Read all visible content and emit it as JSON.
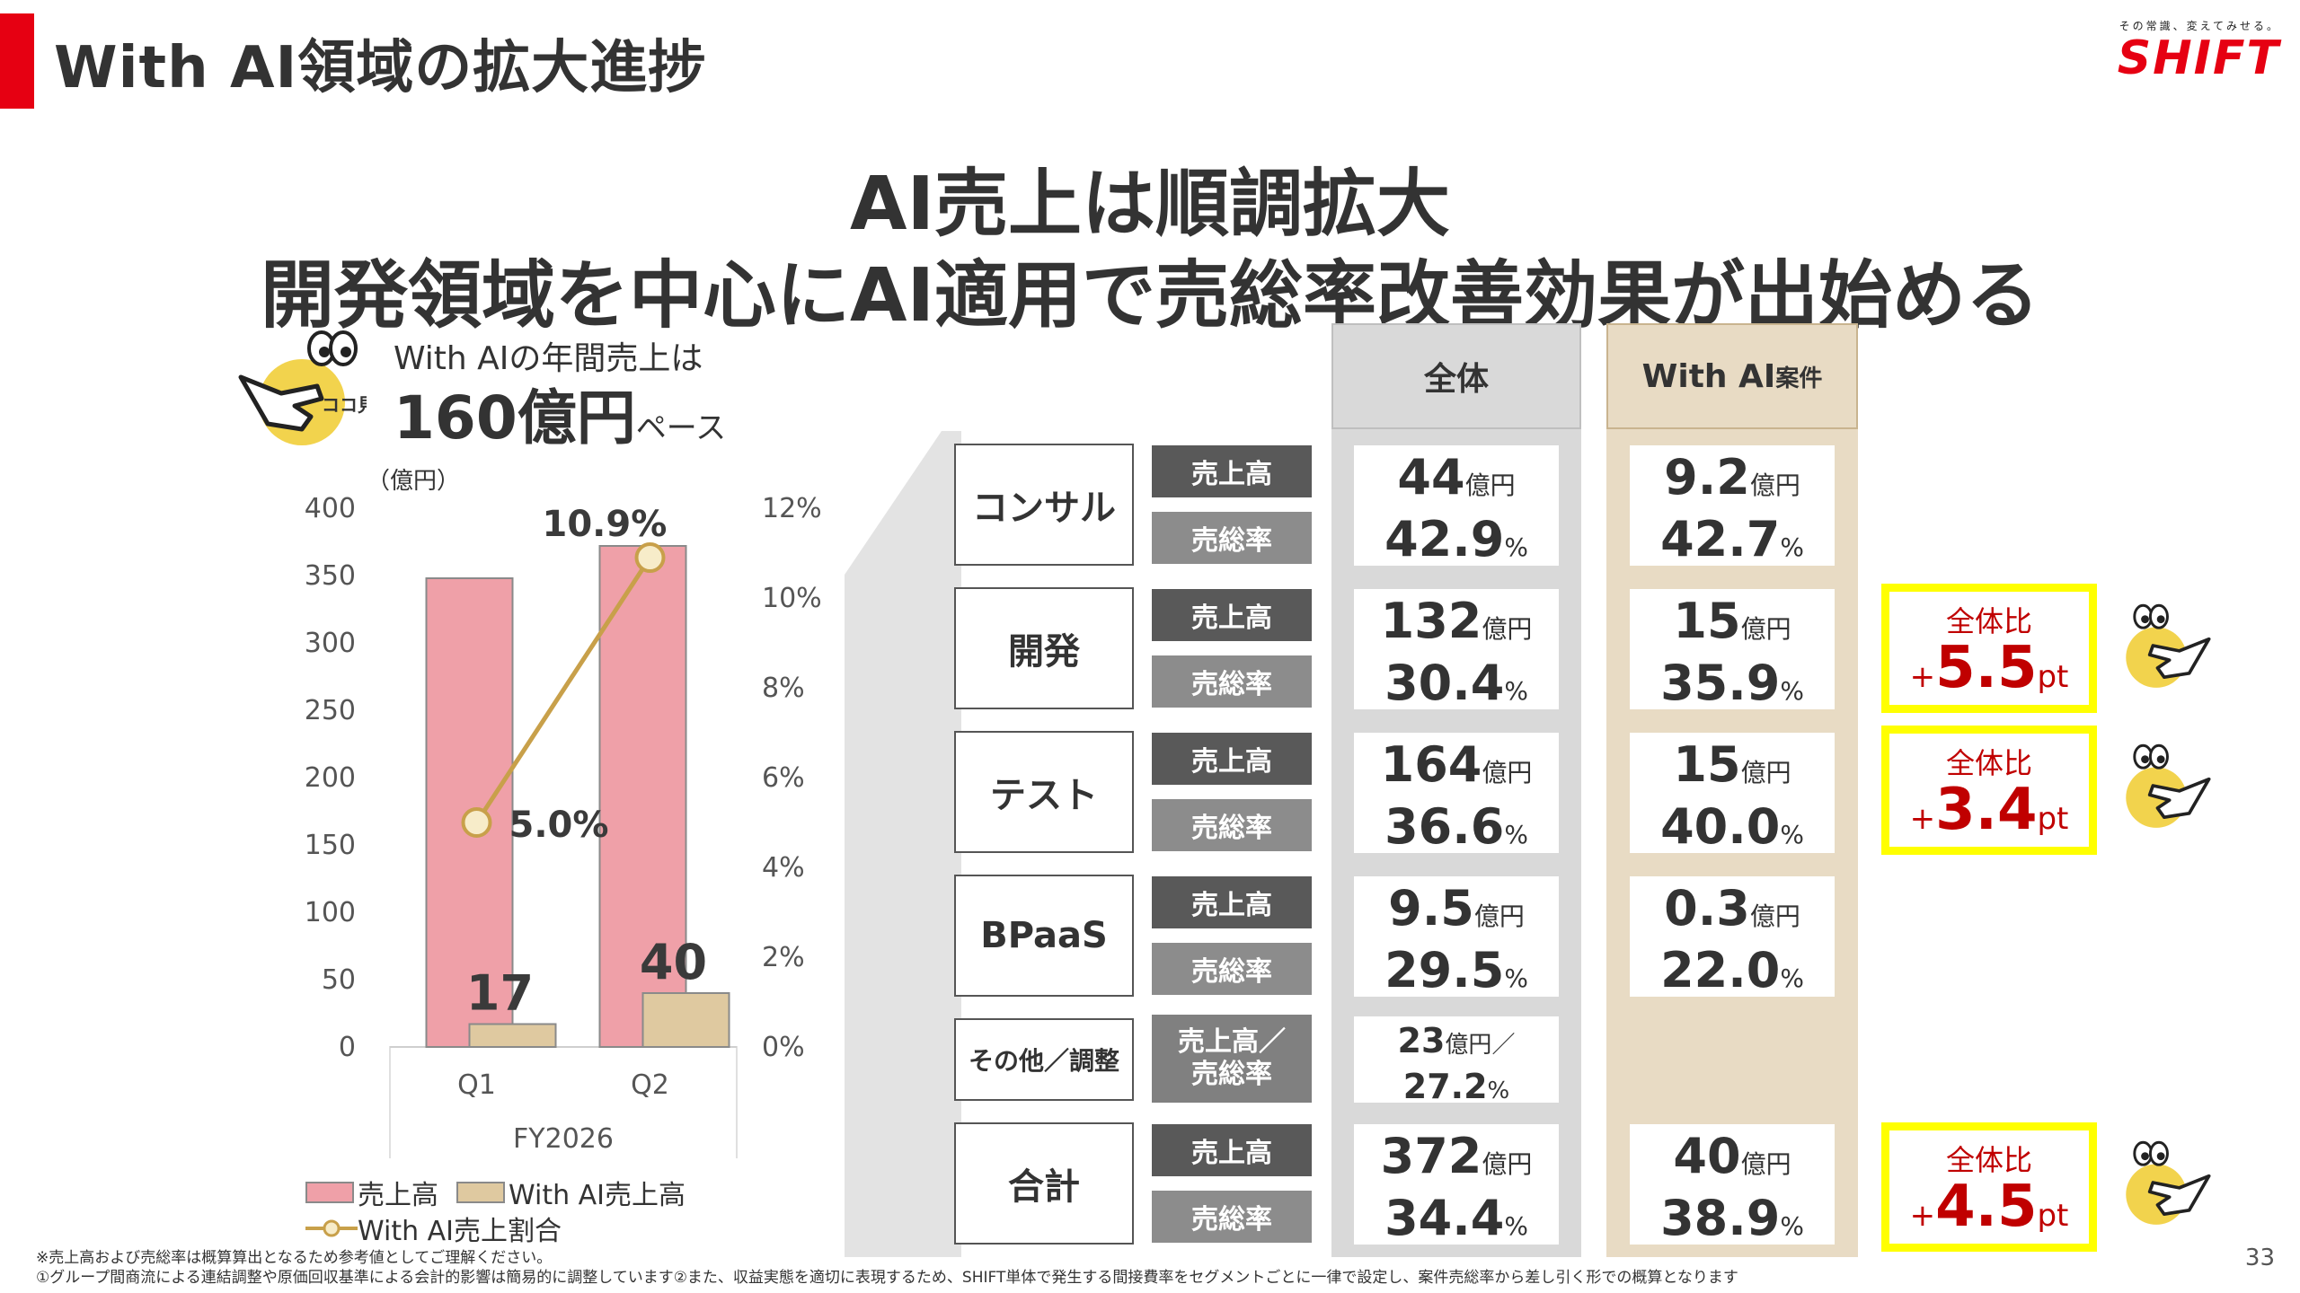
{
  "header": {
    "title": "With AI領域の拡大進捗",
    "brand_tagline": "その常識、変えてみせる。",
    "brand_logo": "SHIFT"
  },
  "headline": {
    "line1": "AI売上は順調拡大",
    "line2": "開発領域を中心にAI適用で売総率改善効果が出始める"
  },
  "callout": {
    "text1": "With AIの年間売上は",
    "value": "160億円",
    "unit": "ペース",
    "mascot_label": "ココ見て"
  },
  "chart_data": {
    "type": "bar",
    "unit_label": "（億円）",
    "categories": [
      "Q1",
      "Q2"
    ],
    "group_label": "FY2026",
    "series": [
      {
        "name": "売上高",
        "values": [
          348,
          372
        ],
        "color": "#efa0a8",
        "labels": [
          "",
          ""
        ]
      },
      {
        "name": "With AI売上高",
        "values": [
          17,
          40
        ],
        "color": "#dfc9a0",
        "labels": [
          "17",
          "40"
        ]
      }
    ],
    "line_series": {
      "name": "With AI売上割合",
      "values": [
        5.0,
        10.9
      ],
      "labels": [
        "5.0%",
        "10.9%"
      ],
      "color": "#c8a04a",
      "axis": "right"
    },
    "y_left": {
      "min": 0,
      "max": 400,
      "ticks": [
        "0",
        "50",
        "100",
        "150",
        "200",
        "250",
        "300",
        "350",
        "400"
      ]
    },
    "y_right": {
      "min": 0,
      "max": 12,
      "ticks": [
        "0%",
        "2%",
        "4%",
        "6%",
        "8%",
        "10%",
        "12%"
      ]
    }
  },
  "table": {
    "col_all": "全体",
    "col_ai": "With AI",
    "col_ai_suffix": "案件",
    "label_sales": "売上高",
    "label_margin": "売総率",
    "label_both_line1": "売上高／",
    "label_both_line2": "売総率",
    "unit_oku": "億円",
    "unit_pct": "%",
    "rows": [
      {
        "segment": "コンサル",
        "all_sales": "44",
        "all_margin": "42.9",
        "ai_sales": "9.2",
        "ai_margin": "42.7"
      },
      {
        "segment": "開発",
        "all_sales": "132",
        "all_margin": "30.4",
        "ai_sales": "15",
        "ai_margin": "35.9",
        "diff": "5.5"
      },
      {
        "segment": "テスト",
        "all_sales": "164",
        "all_margin": "36.6",
        "ai_sales": "15",
        "ai_margin": "40.0",
        "diff": "3.4"
      },
      {
        "segment": "BPaaS",
        "all_sales": "9.5",
        "all_margin": "29.5",
        "ai_sales": "0.3",
        "ai_margin": "22.0"
      },
      {
        "segment": "その他／調整",
        "all_sales": "23",
        "all_margin": "27.2"
      },
      {
        "segment": "合計",
        "all_sales": "372",
        "all_margin": "34.4",
        "ai_sales": "40",
        "ai_margin": "38.9",
        "diff": "4.5"
      }
    ],
    "diff_label": "全体比",
    "diff_prefix": "+",
    "diff_unit": "pt"
  },
  "footnotes": {
    "line1": "※売上高および売総率は概算算出となるため参考値としてご理解ください。",
    "line2": "①グループ間商流による連結調整や原価回収基準による会計的影響は簡易的に調整しています②また、収益実態を適切に表現するため、SHIFT単体で発生する間接費率をセグメントごとに一律で設定し、案件売総率から差し引く形での概算となります"
  },
  "page_number": "33",
  "colors": {
    "accent": "#e60012",
    "highlight": "#ffff00",
    "diff_text": "#c00000"
  }
}
